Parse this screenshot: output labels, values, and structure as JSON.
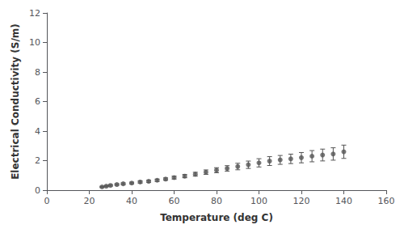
{
  "chart_data": {
    "type": "scatter",
    "xlabel": "Temperature (deg C)",
    "ylabel": "Electrical Conductivity (S/m)",
    "x": [
      26,
      28,
      30,
      33,
      36,
      40,
      44,
      48,
      52,
      56,
      60,
      65,
      70,
      75,
      80,
      85,
      90,
      95,
      100,
      105,
      110,
      115,
      120,
      125,
      130,
      135,
      140
    ],
    "values": [
      0.22,
      0.27,
      0.32,
      0.38,
      0.43,
      0.48,
      0.55,
      0.6,
      0.67,
      0.75,
      0.85,
      0.95,
      1.08,
      1.22,
      1.35,
      1.47,
      1.6,
      1.72,
      1.85,
      1.97,
      2.05,
      2.12,
      2.2,
      2.3,
      2.38,
      2.45,
      2.6
    ],
    "error": [
      0.04,
      0.04,
      0.05,
      0.05,
      0.06,
      0.06,
      0.07,
      0.07,
      0.08,
      0.08,
      0.1,
      0.11,
      0.13,
      0.15,
      0.17,
      0.19,
      0.22,
      0.25,
      0.28,
      0.3,
      0.3,
      0.32,
      0.35,
      0.38,
      0.4,
      0.42,
      0.45
    ],
    "color": "#555555",
    "xlim": [
      0,
      160
    ],
    "ylim": [
      0,
      12
    ],
    "xticks": [
      0,
      20,
      40,
      60,
      80,
      100,
      120,
      140,
      160
    ],
    "yticks": [
      0,
      2,
      4,
      6,
      8,
      10,
      12
    ],
    "grid": false
  }
}
